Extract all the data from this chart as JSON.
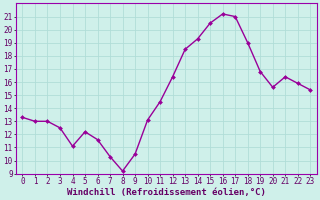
{
  "x": [
    0,
    1,
    2,
    3,
    4,
    5,
    6,
    7,
    8,
    9,
    10,
    11,
    12,
    13,
    14,
    15,
    16,
    17,
    18,
    19,
    20,
    21,
    22,
    23
  ],
  "y": [
    13.3,
    13.0,
    13.0,
    12.5,
    11.1,
    12.2,
    11.6,
    10.3,
    9.2,
    10.5,
    13.1,
    14.5,
    16.4,
    18.5,
    19.3,
    20.5,
    21.2,
    21.0,
    19.0,
    16.8,
    15.6,
    16.4,
    15.9,
    15.4
  ],
  "line_color": "#990099",
  "marker": "D",
  "markersize": 2.0,
  "linewidth": 1.0,
  "xlabel": "Windchill (Refroidissement éolien,°C)",
  "xlabel_fontsize": 6.5,
  "xlim": [
    -0.5,
    23.5
  ],
  "ylim": [
    9,
    22
  ],
  "yticks": [
    9,
    10,
    11,
    12,
    13,
    14,
    15,
    16,
    17,
    18,
    19,
    20,
    21
  ],
  "xticks": [
    0,
    1,
    2,
    3,
    4,
    5,
    6,
    7,
    8,
    9,
    10,
    11,
    12,
    13,
    14,
    15,
    16,
    17,
    18,
    19,
    20,
    21,
    22,
    23
  ],
  "tick_fontsize": 5.5,
  "bg_color": "#cff0ea",
  "grid_color": "#b0ddd8",
  "border_color": "#9900aa"
}
